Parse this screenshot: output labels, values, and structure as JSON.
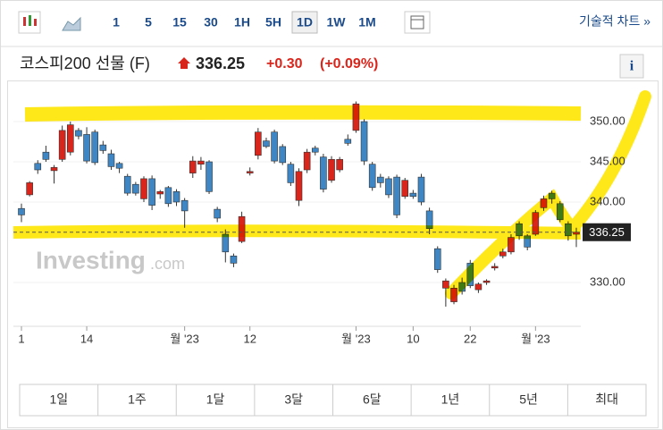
{
  "toolbar": {
    "intervals": [
      "1",
      "5",
      "15",
      "30",
      "1H",
      "5H",
      "1D",
      "1W",
      "1M"
    ],
    "active_interval": 6,
    "link": "기술적 차트 »"
  },
  "header": {
    "name": "코스피200 선물 (F)",
    "price": "336.25",
    "change": "+0.30",
    "change_pct": "(+0.09%)"
  },
  "ranges": [
    "1일",
    "1주",
    "1달",
    "3달",
    "6달",
    "1년",
    "5년",
    "최대"
  ],
  "chart_data": {
    "type": "candlestick",
    "watermark": "Investing",
    "watermark_suffix": ".com",
    "up_color": "#d9261c",
    "down_color": "#3f86c4",
    "last_value": 336.25,
    "last_label": "336.25",
    "ylim": [
      325,
      354
    ],
    "yticks": [
      {
        "value": 330,
        "label": "330.00"
      },
      {
        "value": 340,
        "label": "340.00"
      },
      {
        "value": 345,
        "label": "345.00"
      },
      {
        "value": 350,
        "label": "350.00"
      }
    ],
    "categories": [
      "1",
      null,
      null,
      null,
      null,
      null,
      null,
      null,
      "14",
      null,
      null,
      null,
      null,
      null,
      null,
      null,
      null,
      null,
      null,
      null,
      "월 '23",
      null,
      null,
      null,
      null,
      null,
      null,
      null,
      "12",
      null,
      null,
      null,
      null,
      null,
      null,
      null,
      null,
      null,
      null,
      null,
      null,
      "월 '23",
      null,
      null,
      null,
      null,
      null,
      null,
      "10",
      null,
      null,
      null,
      null,
      null,
      null,
      "22",
      null,
      null,
      null,
      null,
      null,
      null,
      null,
      "월 '23",
      null,
      null,
      null,
      null,
      null
    ],
    "open": [
      339.2,
      340.9,
      344.8,
      346.2,
      343.9,
      345.3,
      346.2,
      348.9,
      348.4,
      348.7,
      347.1,
      346,
      344.8,
      343.2,
      342.2,
      340.4,
      342.9,
      341,
      341.8,
      341.3,
      340.2,
      343.6,
      344.7,
      345,
      339.1,
      336,
      333.3,
      335.1,
      343.6,
      345.8,
      347.6,
      348.7,
      346.9,
      344.7,
      340.2,
      344,
      346.7,
      345.6,
      342.7,
      344,
      347.8,
      348.9,
      350,
      344.7,
      343.1,
      342.9,
      343.1,
      340.7,
      341.1,
      343.1,
      338.9,
      334.2,
      329.3,
      327.6,
      330,
      332.4,
      329.1,
      330,
      331.8,
      333.3,
      333.8,
      337.3,
      335.8,
      336,
      339.3,
      341.1,
      339.8,
      337.3,
      336
    ],
    "high": [
      339.8,
      342.6,
      345.2,
      347,
      344.6,
      349.5,
      350,
      349.2,
      349.3,
      349,
      347.6,
      346.5,
      345,
      343.5,
      342.5,
      343.2,
      343.3,
      341.5,
      342,
      341.6,
      340.5,
      345.7,
      345.6,
      345.2,
      339.4,
      336.6,
      333.6,
      338.8,
      344.3,
      349.2,
      348,
      349,
      347.2,
      345,
      344.2,
      346.6,
      347,
      346,
      345.7,
      345.6,
      348.4,
      352.5,
      350.3,
      345,
      343.5,
      343.2,
      343.4,
      343,
      341.5,
      343.5,
      339.3,
      334.5,
      330.5,
      329.7,
      330.6,
      332.8,
      330,
      330.4,
      332.4,
      334.2,
      336,
      337.6,
      336,
      339,
      340.8,
      341.4,
      340.1,
      337.6,
      336.8
    ],
    "low": [
      337.5,
      340.7,
      343.5,
      345,
      342.3,
      345,
      345.8,
      347.8,
      344.8,
      344.6,
      346,
      344,
      343.6,
      340.8,
      340.8,
      340,
      339,
      340.4,
      339.4,
      339.5,
      336.8,
      343,
      344,
      341,
      337.5,
      332.5,
      331.9,
      334.9,
      343.3,
      345.3,
      346.7,
      344.8,
      344.6,
      342,
      339.5,
      343.6,
      345.8,
      341.2,
      342.4,
      343.7,
      347,
      348.6,
      344.6,
      341.4,
      341.8,
      340.5,
      338,
      340.4,
      340.4,
      339.6,
      336,
      331.2,
      327,
      327.3,
      328.5,
      329.3,
      328.7,
      329.7,
      331.5,
      333,
      333.5,
      335.3,
      334,
      335.8,
      338.9,
      339.8,
      337.5,
      335.2,
      334.4
    ],
    "close": [
      338.4,
      342.4,
      344,
      345.3,
      344.3,
      348.9,
      349.6,
      348.2,
      345.1,
      344.9,
      346.4,
      344.4,
      344.2,
      341.1,
      341.1,
      342.9,
      339.6,
      341.3,
      339.8,
      340,
      338.9,
      345.1,
      345.1,
      341.3,
      338,
      333.8,
      332.4,
      338.2,
      343.8,
      348.7,
      346.9,
      345.1,
      344.9,
      342.4,
      343.8,
      346.2,
      346.2,
      341.6,
      345.3,
      345.3,
      347.3,
      352.2,
      345.1,
      341.8,
      342.4,
      340.9,
      338.4,
      342.7,
      340.7,
      340,
      336.7,
      331.6,
      330.2,
      329.3,
      328.9,
      329.6,
      329.8,
      330.2,
      332,
      333.8,
      335.6,
      335.8,
      334.4,
      338.7,
      340.4,
      340.4,
      337.8,
      335.8,
      336.25
    ]
  }
}
